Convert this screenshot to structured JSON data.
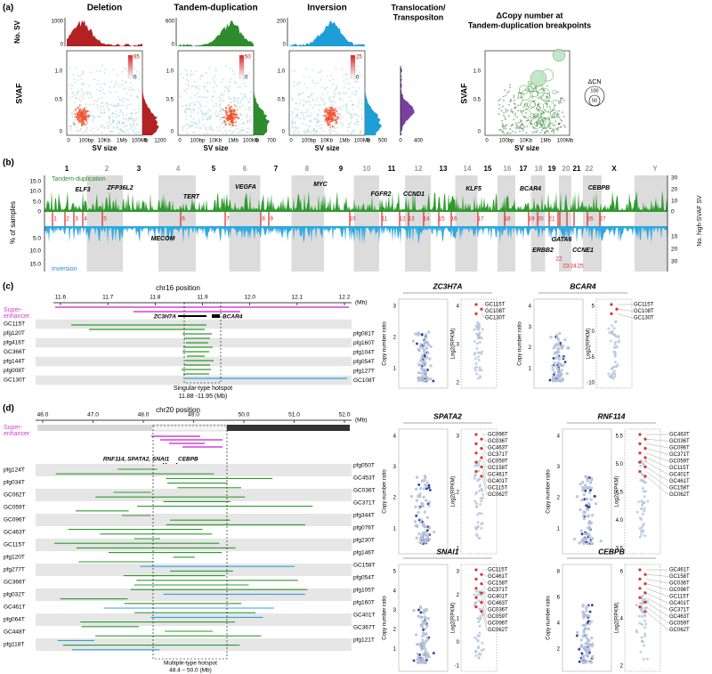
{
  "panel_a": {
    "label": "(a)",
    "titles": [
      "Deletion",
      "Tandem-duplication",
      "Inversion"
    ],
    "translocation_title": [
      "Translocation/",
      "Transpositon"
    ],
    "cn_title": [
      "ΔCopy number at",
      "Tandem-duplication breakpoints"
    ],
    "y_label_top": "No. SV",
    "y_label": "SVAF",
    "x_label": "SV size",
    "top_ticks": [
      [
        "1000",
        "0"
      ],
      [
        "600",
        "0"
      ],
      [
        "200",
        "0"
      ]
    ],
    "svaf_ticks": [
      "1.0",
      "0.5",
      "0"
    ],
    "x_ticks": [
      "0",
      "100bp",
      "10Kb",
      "1Mb",
      "100Mb"
    ],
    "density_ticks": [
      [
        "65",
        "0"
      ],
      [
        "50",
        "0"
      ],
      [
        "25",
        "0"
      ]
    ],
    "marginal_ticks": [
      [
        "0",
        "1200"
      ],
      [
        "0",
        "700"
      ],
      [
        "0",
        "500"
      ],
      [
        "0",
        "400"
      ]
    ],
    "legend_title": "ΔCN",
    "legend_sizes": [
      "100",
      "50"
    ]
  },
  "panel_b": {
    "label": "(b)",
    "chromosomes": [
      "1",
      "2",
      "3",
      "4",
      "5",
      "6",
      "7",
      "8",
      "9",
      "10",
      "11",
      "12",
      "13",
      "14",
      "15",
      "16",
      "17",
      "18",
      "19",
      "20",
      "21",
      "22",
      "X",
      "Y"
    ],
    "series": [
      "Tandem-duplication",
      "Inversion"
    ],
    "y_label": "% of samples",
    "y2_label": "No. high-SVAF SV",
    "left_ticks": [
      "15.0",
      "10.0",
      "5.0",
      "0",
      "5.0",
      "10.0",
      "15.0"
    ],
    "right_ticks": [
      "30",
      "20",
      "10",
      "0",
      "10",
      "20",
      "30"
    ],
    "genes_up": [
      "ELF3",
      "ZFP36L2",
      "TERT",
      "VEGFA",
      "MYC",
      "FGFR2",
      "CCND1",
      "KLF5",
      "BCAR4",
      "CEBPB"
    ],
    "genes_down": [
      "MECOM",
      "ERBB2",
      "GATA6",
      "CCNE1"
    ],
    "hotspots": [
      "1",
      "2",
      "3",
      "4",
      "5",
      "6",
      "7",
      "8",
      "9",
      "10",
      "11",
      "12",
      "13",
      "14",
      "15",
      "16",
      "17",
      "18",
      "19",
      "20",
      "21",
      "22",
      "23",
      "24",
      "25",
      "26",
      "27"
    ]
  },
  "panel_c": {
    "label": "(c)",
    "axis_title": "chr16 position",
    "ticks": [
      "11.6",
      "11.7",
      "11.8",
      "11.9",
      "12.0",
      "12.1",
      "12.2"
    ],
    "unit": "(Mb)",
    "super_enhancer": [
      "Super-",
      "enhancer"
    ],
    "genes": [
      "ZC3H7A",
      "BCAR4"
    ],
    "samples_left": [
      "GC115T",
      "pfg120T",
      "pfg416T",
      "GC366T",
      "pfg144T",
      "pfg008T",
      "GC130T"
    ],
    "samples_right": [
      "pfg081T",
      "pfg160T",
      "pfg104T",
      "pfg054T",
      "pfg127T",
      "GC108T"
    ],
    "hotspot": [
      "Singular-type hotspot",
      "11.88 -11.95 (Mb)"
    ],
    "cn_label": "Copy number ratio",
    "rpkm_label": "Log2(RPKM)",
    "plots": [
      {
        "gene": "ZC3H7A",
        "cn_ticks": [
          "3",
          "2",
          "1"
        ],
        "rpkm_ticks": [
          "4",
          "3",
          "2"
        ],
        "labels": [
          "GC115T",
          "GC108T",
          "GC130T"
        ]
      },
      {
        "gene": "BCAR4",
        "cn_ticks": [
          "4",
          "3",
          "2",
          "1"
        ],
        "rpkm_ticks": [
          "5",
          "0",
          "-5",
          "-10"
        ],
        "labels": [
          "GC115T",
          "GC108T",
          "GC130T"
        ]
      }
    ]
  },
  "panel_d": {
    "label": "(d)",
    "axis_title": "chr20 position",
    "ticks": [
      "46.0",
      "47.0",
      "48.0",
      "49.0",
      "50.0",
      "51.0",
      "52.0"
    ],
    "unit": "(Mb)",
    "super_enhancer": [
      "Super-",
      "enhancer"
    ],
    "genes": [
      "RNF114, SPATA2, SNAI1",
      "CEBPB"
    ],
    "samples_left": [
      "pfg124T",
      "pfg034T",
      "GC062T",
      "GC059T",
      "GC096T",
      "GC463T",
      "GC115T",
      "pfg120T",
      "pfg277T",
      "GC366T",
      "pfg032T",
      "GC461T",
      "pfg064T",
      "GC448T",
      "pfg118T"
    ],
    "samples_right": [
      "pfg050T",
      "GC453T",
      "GC036T",
      "GC371T",
      "pfg344T",
      "pfg076T",
      "pfg230T",
      "pfg146T",
      "GC158T",
      "pfg054T",
      "pfg105T",
      "pfg160T",
      "GC401T",
      "GC367T",
      "pfg121T"
    ],
    "hotspot": [
      "Multiple-type hotspot",
      "48.4 – 50.0 (Mb)"
    ],
    "cn_label": "Copy number ratio",
    "rpkm_label": "Log2(RPKM)",
    "plots": [
      {
        "gene": "SPATA2",
        "cn_ticks": [
          "4",
          "3",
          "2",
          "1"
        ],
        "rpkm_ticks": [
          "3",
          "2",
          "1"
        ],
        "labels": [
          "GC096T",
          "GC036T",
          "GC463T",
          "GC371T",
          "GC059T",
          "GC158T",
          "GC461T",
          "GC401T",
          "GC115T",
          "GC062T"
        ]
      },
      {
        "gene": "RNF114",
        "cn_ticks": [
          "4",
          "3",
          "2",
          "1"
        ],
        "rpkm_ticks": [
          "5.5",
          "5.0",
          "4.5",
          "4.0",
          "3.5"
        ],
        "labels": [
          "GC463T",
          "GC036T",
          "GC096T",
          "GC371T",
          "GC059T",
          "GC115T",
          "GC401T",
          "GC461T",
          "GC158T",
          "GC062T"
        ]
      },
      {
        "gene": "SNAI1",
        "cn_ticks": [
          "5",
          "4",
          "3",
          "2",
          "1"
        ],
        "rpkm_ticks": [
          "3",
          "2",
          "1",
          "0",
          "-1"
        ],
        "labels": [
          "GC115T",
          "GC461T",
          "GC158T",
          "GC371T",
          "GC401T",
          "GC463T",
          "GC036T",
          "GC059T",
          "GC096T",
          "GC062T"
        ]
      },
      {
        "gene": "CEBPB",
        "cn_ticks": [
          "8",
          "6",
          "4",
          "2"
        ],
        "rpkm_ticks": [
          "6",
          "4",
          "2"
        ],
        "labels": [
          "GC461T",
          "GC158T",
          "GC036T",
          "GC096T",
          "GC115T",
          "GC401T",
          "GC371T",
          "GC463T",
          "GC059T",
          "GC062T"
        ]
      }
    ]
  }
}
